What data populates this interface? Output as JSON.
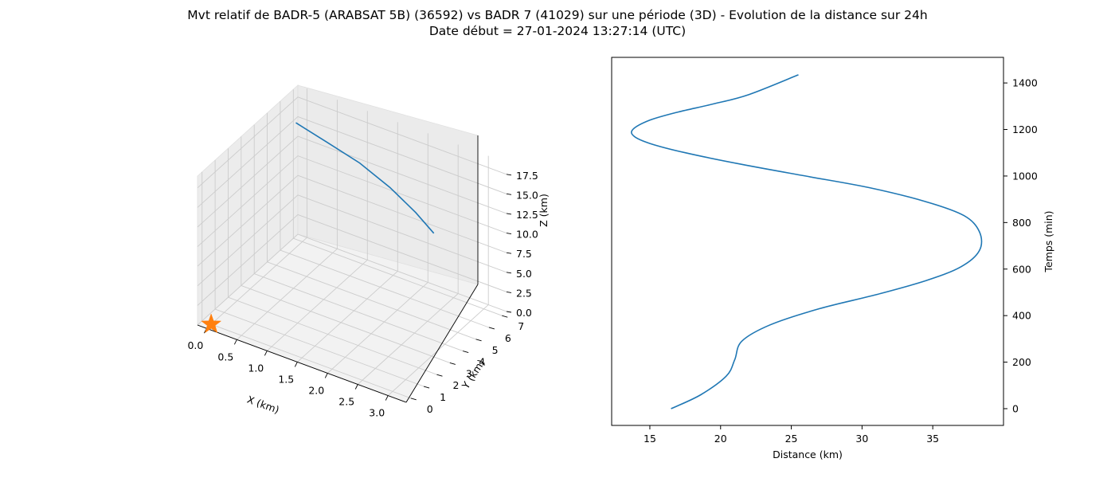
{
  "title": {
    "line1": "Mvt relatif de BADR-5 (ARABSAT 5B) (36592) vs BADR 7 (41029) sur une période (3D) - Evolution de la distance sur 24h",
    "line2": "Date début = 27-01-2024 13:27:14 (UTC)"
  },
  "colors": {
    "series": "#1f77b4",
    "marker": "#ff7f0e",
    "pane": "#f2f2f2",
    "grid": "#cccccc"
  },
  "chart_data": [
    {
      "type": "line",
      "projection": "3d",
      "xlabel": "X (km)",
      "ylabel": "Y (km)",
      "zlabel": "Z (km)",
      "xlim": [
        -0.15,
        3.3
      ],
      "ylim": [
        -0.35,
        7.35
      ],
      "zlim": [
        0,
        19
      ],
      "xticks": [
        "0.0",
        "0.5",
        "1.0",
        "1.5",
        "2.0",
        "2.5",
        "3.0"
      ],
      "yticks": [
        "0",
        "1",
        "2",
        "3",
        "4",
        "5",
        "6",
        "7"
      ],
      "zticks": [
        "0.0",
        "2.5",
        "5.0",
        "7.5",
        "10.0",
        "12.5",
        "15.0",
        "17.5"
      ],
      "grid": true,
      "series": [
        {
          "x": [
            0.13,
            0.75,
            1.4,
            2.05,
            2.65,
            3.1
          ],
          "y": [
            5.9,
            5.4,
            4.9,
            4.2,
            3.4,
            2.7
          ],
          "z": [
            17.2,
            17.25,
            17.2,
            17.0,
            16.7,
            16.4
          ]
        }
      ],
      "marker": {
        "shape": "star",
        "x": 0,
        "y": 0,
        "z": 0
      }
    },
    {
      "type": "line",
      "xlabel": "Distance (km)",
      "ylabel": "Temps (min)",
      "xlim": [
        12.3,
        40.0
      ],
      "ylim": [
        -72,
        1510
      ],
      "xticks": [
        15,
        20,
        25,
        30,
        35
      ],
      "yticks": [
        0,
        200,
        400,
        600,
        800,
        1000,
        1200,
        1400
      ],
      "yaxis_side": "right",
      "grid": false,
      "series": [
        {
          "x": [
            16.5,
            18.6,
            20.4,
            21.0,
            21.5,
            23.5,
            27.0,
            31.0,
            34.5,
            37.0,
            38.3,
            38.3,
            37.2,
            34.5,
            30.5,
            26.0,
            21.5,
            17.5,
            15.0,
            13.9,
            13.8,
            15.0,
            17.0,
            19.5,
            22.0,
            25.5
          ],
          "y": [
            0,
            60,
            140,
            210,
            290,
            360,
            430,
            490,
            550,
            610,
            680,
            760,
            830,
            890,
            950,
            1000,
            1050,
            1100,
            1140,
            1170,
            1200,
            1240,
            1275,
            1310,
            1350,
            1435
          ]
        }
      ]
    }
  ]
}
